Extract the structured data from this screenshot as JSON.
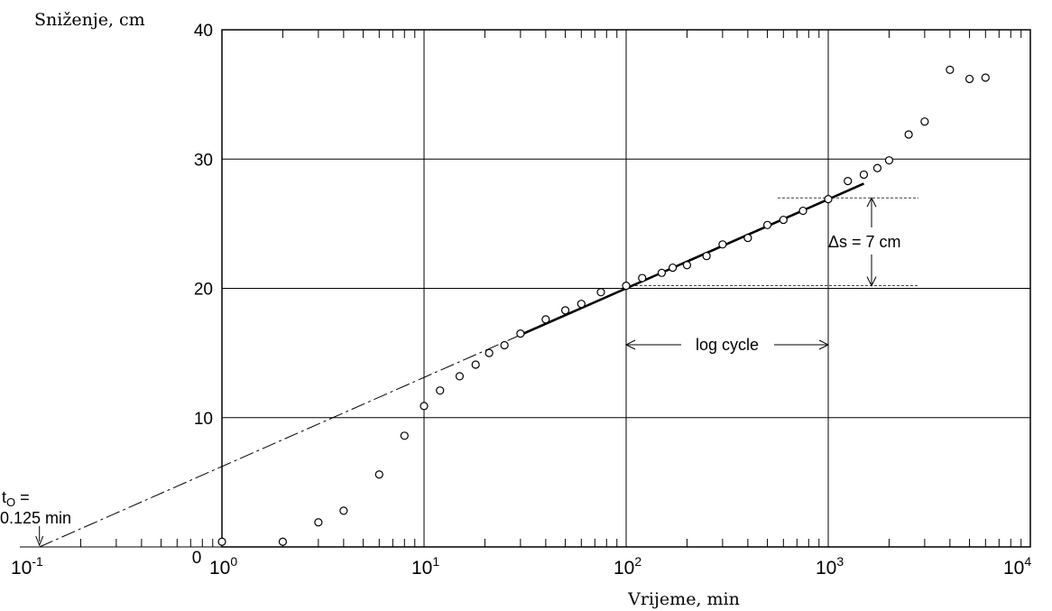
{
  "chart_data": {
    "type": "scatter",
    "ylabel": "Sniženje, cm",
    "xlabel": "Vrijeme, min",
    "x_scale": "log",
    "xlim": [
      0.1,
      10000
    ],
    "ylim": [
      0,
      40
    ],
    "grid": true,
    "x_ticks": [
      {
        "base": "10",
        "exp": "-1",
        "value": 0.1
      },
      {
        "base": "10",
        "exp": "0",
        "value": 1
      },
      {
        "base": "10",
        "exp": "1",
        "value": 10
      },
      {
        "base": "10",
        "exp": "2",
        "value": 100
      },
      {
        "base": "10",
        "exp": "3",
        "value": 1000
      },
      {
        "base": "10",
        "exp": "4",
        "value": 10000
      }
    ],
    "y_ticks": [
      "10",
      "20",
      "30",
      "40"
    ],
    "y_tick_values": [
      10,
      20,
      30,
      40
    ],
    "zero_label": "0",
    "series": [
      {
        "x": [
          1,
          2,
          3,
          4,
          6,
          8,
          10,
          12,
          15,
          18,
          21,
          25,
          30,
          40,
          50,
          60,
          75,
          100,
          120,
          150,
          170,
          200,
          250,
          300,
          400,
          500,
          600,
          750,
          1000,
          1250,
          1500,
          1750,
          2000,
          2500,
          3000,
          4000,
          5000,
          6000
        ],
        "y": [
          0.4,
          0.4,
          1.9,
          2.8,
          5.6,
          8.6,
          10.9,
          12.1,
          13.2,
          14.1,
          15.0,
          15.6,
          16.5,
          17.6,
          18.3,
          18.8,
          19.7,
          20.2,
          20.8,
          21.2,
          21.6,
          21.8,
          22.5,
          23.4,
          23.9,
          24.9,
          25.3,
          26.0,
          26.9,
          28.3,
          28.8,
          29.3,
          29.9,
          31.9,
          32.9,
          36.9,
          36.2,
          36.3
        ]
      }
    ],
    "fit_line": {
      "x": [
        0.125,
        1500
      ],
      "y": [
        0,
        28.1
      ],
      "solid_from_x": 30
    },
    "annotations": {
      "t0_line1_main": "t",
      "t0_line1_sub": "O",
      "t0_line1_rest": " =",
      "t0_line2": "0.125 min",
      "delta_s": "Δs =  7 cm",
      "log_cycle": "log cycle",
      "log_cycle_range": [
        100,
        1000
      ],
      "delta_s_range": [
        20.2,
        27.0
      ]
    }
  }
}
